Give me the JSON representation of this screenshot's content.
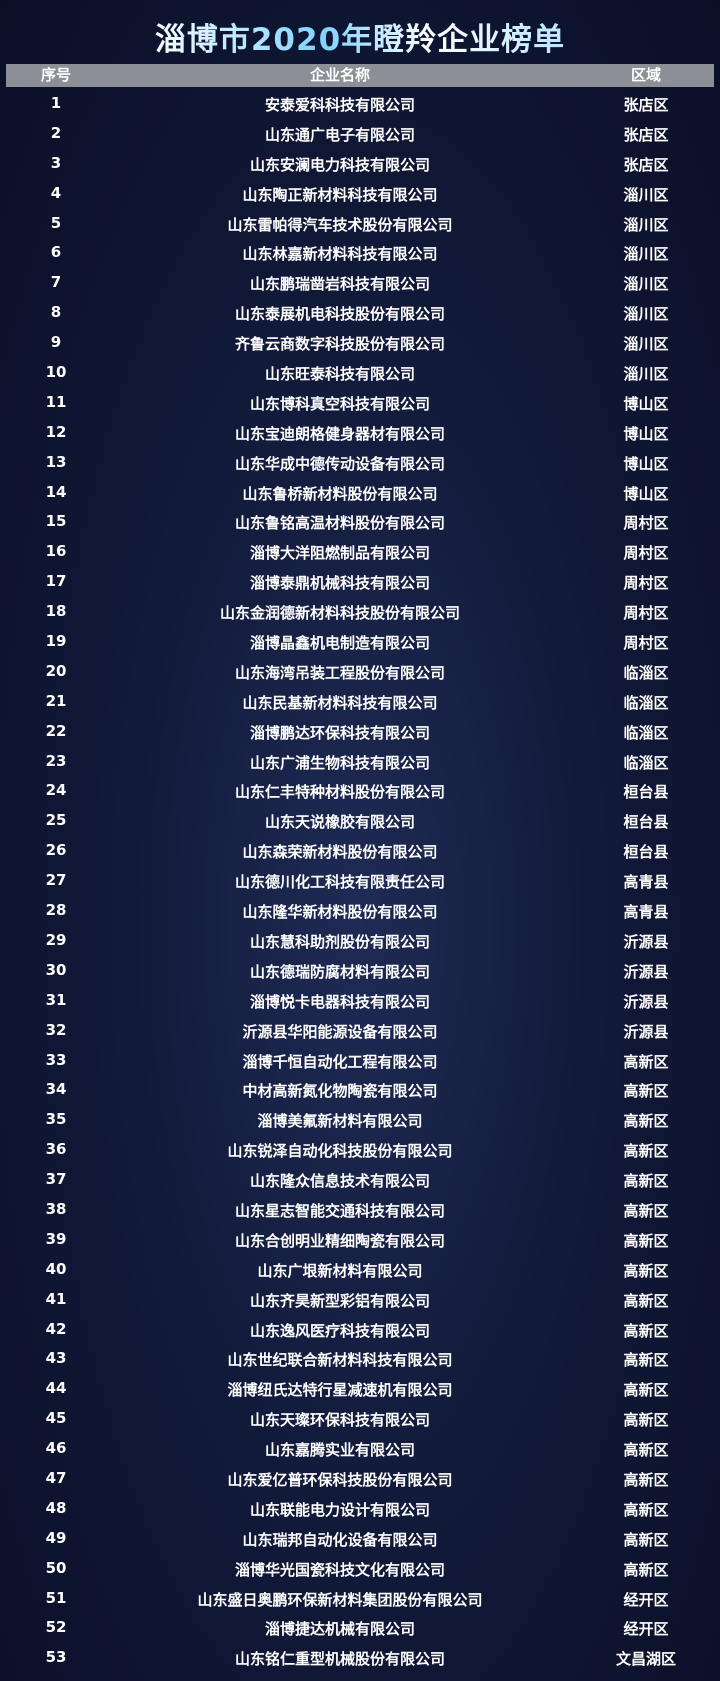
{
  "title": "淄博市2020年瞪羚企业榜单",
  "colors": {
    "header_bg": "#8c8f96",
    "title_accent": "#7fd3ff",
    "background": "#121a3a"
  },
  "table": {
    "headers": [
      "序号",
      "企业名称",
      "区域"
    ],
    "rows": [
      [
        "1",
        "安泰爱科科技有限公司",
        "张店区"
      ],
      [
        "2",
        "山东通广电子有限公司",
        "张店区"
      ],
      [
        "3",
        "山东安澜电力科技有限公司",
        "张店区"
      ],
      [
        "4",
        "山东陶正新材料科技有限公司",
        "淄川区"
      ],
      [
        "5",
        "山东雷帕得汽车技术股份有限公司",
        "淄川区"
      ],
      [
        "6",
        "山东林嘉新材料科技有限公司",
        "淄川区"
      ],
      [
        "7",
        "山东鹏瑞凿岩科技有限公司",
        "淄川区"
      ],
      [
        "8",
        "山东泰展机电科技股份有限公司",
        "淄川区"
      ],
      [
        "9",
        "齐鲁云商数字科技股份有限公司",
        "淄川区"
      ],
      [
        "10",
        "山东旺泰科技有限公司",
        "淄川区"
      ],
      [
        "11",
        "山东博科真空科技有限公司",
        "博山区"
      ],
      [
        "12",
        "山东宝迪朗格健身器材有限公司",
        "博山区"
      ],
      [
        "13",
        "山东华成中德传动设备有限公司",
        "博山区"
      ],
      [
        "14",
        "山东鲁桥新材料股份有限公司",
        "博山区"
      ],
      [
        "15",
        "山东鲁铭高温材料股份有限公司",
        "周村区"
      ],
      [
        "16",
        "淄博大洋阻燃制品有限公司",
        "周村区"
      ],
      [
        "17",
        "淄博泰鼎机械科技有限公司",
        "周村区"
      ],
      [
        "18",
        "山东金润德新材料科技股份有限公司",
        "周村区"
      ],
      [
        "19",
        "淄博晶鑫机电制造有限公司",
        "周村区"
      ],
      [
        "20",
        "山东海湾吊装工程股份有限公司",
        "临淄区"
      ],
      [
        "21",
        "山东民基新材料科技有限公司",
        "临淄区"
      ],
      [
        "22",
        "淄博鹏达环保科技有限公司",
        "临淄区"
      ],
      [
        "23",
        "山东广浦生物科技有限公司",
        "临淄区"
      ],
      [
        "24",
        "山东仁丰特种材料股份有限公司",
        "桓台县"
      ],
      [
        "25",
        "山东天说橡胶有限公司",
        "桓台县"
      ],
      [
        "26",
        "山东森荣新材料股份有限公司",
        "桓台县"
      ],
      [
        "27",
        "山东德川化工科技有限责任公司",
        "高青县"
      ],
      [
        "28",
        "山东隆华新材料股份有限公司",
        "高青县"
      ],
      [
        "29",
        "山东慧科助剂股份有限公司",
        "沂源县"
      ],
      [
        "30",
        "山东德瑞防腐材料有限公司",
        "沂源县"
      ],
      [
        "31",
        "淄博悦卡电器科技有限公司",
        "沂源县"
      ],
      [
        "32",
        "沂源县华阳能源设备有限公司",
        "沂源县"
      ],
      [
        "33",
        "淄博千恒自动化工程有限公司",
        "高新区"
      ],
      [
        "34",
        "中材高新氮化物陶瓷有限公司",
        "高新区"
      ],
      [
        "35",
        "淄博美氟新材料有限公司",
        "高新区"
      ],
      [
        "36",
        "山东锐泽自动化科技股份有限公司",
        "高新区"
      ],
      [
        "37",
        "山东隆众信息技术有限公司",
        "高新区"
      ],
      [
        "38",
        "山东星志智能交通科技有限公司",
        "高新区"
      ],
      [
        "39",
        "山东合创明业精细陶瓷有限公司",
        "高新区"
      ],
      [
        "40",
        "山东广垠新材料有限公司",
        "高新区"
      ],
      [
        "41",
        "山东齐昊新型彩铝有限公司",
        "高新区"
      ],
      [
        "42",
        "山东逸风医疗科技有限公司",
        "高新区"
      ],
      [
        "43",
        "山东世纪联合新材料科技有限公司",
        "高新区"
      ],
      [
        "44",
        "淄博纽氏达特行星减速机有限公司",
        "高新区"
      ],
      [
        "45",
        "山东天璨环保科技有限公司",
        "高新区"
      ],
      [
        "46",
        "山东嘉腾实业有限公司",
        "高新区"
      ],
      [
        "47",
        "山东爱亿普环保科技股份有限公司",
        "高新区"
      ],
      [
        "48",
        "山东联能电力设计有限公司",
        "高新区"
      ],
      [
        "49",
        "山东瑞邦自动化设备有限公司",
        "高新区"
      ],
      [
        "50",
        "淄博华光国瓷科技文化有限公司",
        "高新区"
      ],
      [
        "51",
        "山东盛日奥鹏环保新材料集团股份有限公司",
        "经开区"
      ],
      [
        "52",
        "淄博捷达机械有限公司",
        "经开区"
      ],
      [
        "53",
        "山东铭仁重型机械股份有限公司",
        "文昌湖区"
      ]
    ]
  }
}
